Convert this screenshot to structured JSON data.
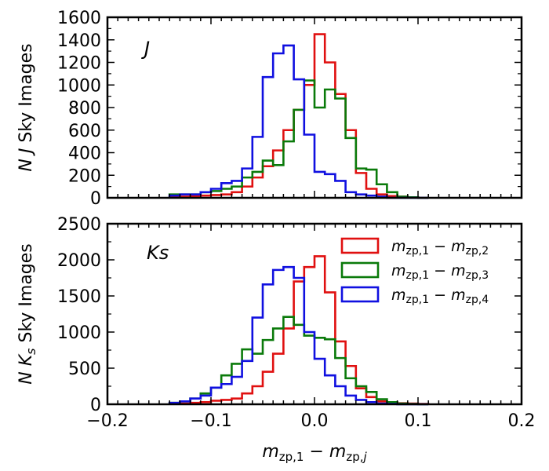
{
  "chart_data": [
    {
      "type": "histogram",
      "panel": "top",
      "band_label": "J",
      "ylabel": "N J Sky Images",
      "xlim": [
        -0.2,
        0.2
      ],
      "ylim": [
        0,
        1600
      ],
      "yticks": [
        "0",
        "200",
        "400",
        "600",
        "800",
        "1000",
        "1200",
        "1400",
        "1600"
      ],
      "xticks": [
        "",
        "",
        "",
        "",
        ""
      ],
      "bin_edges": [
        -0.14,
        -0.13,
        -0.12,
        -0.11,
        -0.1,
        -0.09,
        -0.08,
        -0.07,
        -0.06,
        -0.05,
        -0.04,
        -0.03,
        -0.02,
        -0.01,
        0.0,
        0.01,
        0.02,
        0.03,
        0.04,
        0.05,
        0.06,
        0.07,
        0.08,
        0.09,
        0.1,
        0.11
      ],
      "series": [
        {
          "color": "#e01010",
          "counts": [
            5,
            10,
            15,
            20,
            25,
            30,
            50,
            100,
            180,
            280,
            420,
            600,
            780,
            1000,
            1450,
            1200,
            920,
            600,
            220,
            80,
            30,
            15,
            10,
            5,
            0
          ]
        },
        {
          "color": "#0a7a0a",
          "counts": [
            30,
            30,
            30,
            50,
            60,
            80,
            100,
            180,
            230,
            330,
            290,
            500,
            780,
            1040,
            800,
            960,
            880,
            530,
            260,
            250,
            120,
            50,
            10,
            5,
            0
          ]
        },
        {
          "color": "#1010e0",
          "counts": [
            20,
            30,
            30,
            50,
            80,
            130,
            150,
            260,
            540,
            1070,
            1280,
            1350,
            1050,
            560,
            230,
            210,
            150,
            50,
            30,
            20,
            10,
            0,
            0,
            0,
            0
          ]
        }
      ]
    },
    {
      "type": "histogram",
      "panel": "bottom",
      "band_label": "Ks",
      "ylabel": "N Ks Sky Images",
      "xlabel": "m_zp,1 − m_zp,j",
      "xlim": [
        -0.2,
        0.2
      ],
      "ylim": [
        0,
        2500
      ],
      "yticks": [
        "0",
        "500",
        "1000",
        "1500",
        "2000",
        "2500"
      ],
      "xticks": [
        "−0.2",
        "−0.1",
        "0.0",
        "0.1",
        "0.2"
      ],
      "bin_edges": [
        -0.14,
        -0.13,
        -0.12,
        -0.11,
        -0.1,
        -0.09,
        -0.08,
        -0.07,
        -0.06,
        -0.05,
        -0.04,
        -0.03,
        -0.02,
        -0.01,
        0.0,
        0.01,
        0.02,
        0.03,
        0.04,
        0.05,
        0.06,
        0.07,
        0.08,
        0.09,
        0.1,
        0.11
      ],
      "series": [
        {
          "color": "#e01010",
          "counts": [
            5,
            10,
            20,
            30,
            50,
            60,
            80,
            150,
            250,
            450,
            700,
            1050,
            1700,
            1900,
            2050,
            1550,
            870,
            530,
            220,
            100,
            40,
            20,
            15,
            10,
            5
          ],
          "legend": [
            "m",
            "zp,1",
            "m",
            "zp,2"
          ]
        },
        {
          "color": "#0a7a0a",
          "counts": [
            20,
            40,
            80,
            150,
            230,
            400,
            560,
            760,
            700,
            890,
            1050,
            1210,
            1100,
            950,
            920,
            900,
            640,
            360,
            250,
            170,
            70,
            30,
            10,
            5,
            0
          ],
          "legend": [
            "m",
            "zp,1",
            "m",
            "zp,3"
          ]
        },
        {
          "color": "#1010e0",
          "counts": [
            20,
            40,
            80,
            120,
            230,
            280,
            380,
            600,
            1200,
            1660,
            1860,
            1900,
            1750,
            1000,
            630,
            400,
            250,
            120,
            60,
            30,
            10,
            5,
            0,
            0,
            0
          ],
          "legend": [
            "m",
            "zp,1",
            "m",
            "zp,4"
          ]
        }
      ],
      "legend_position": "top-right"
    }
  ]
}
